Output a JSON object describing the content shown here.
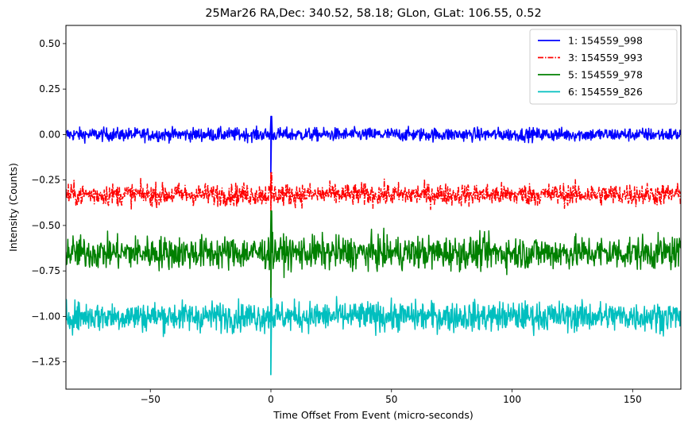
{
  "chart_data": {
    "type": "line",
    "title": "25Mar26 RA,Dec:  340.52,  58.18; GLon, GLat:  106.55,   0.52",
    "xlabel": "Time Offset From Event (micro-seconds)",
    "ylabel": "Intensity (Counts)",
    "xlim": [
      -85,
      170
    ],
    "ylim": [
      -1.4,
      0.6
    ],
    "xticks": [
      -50,
      0,
      50,
      100,
      150
    ],
    "xtick_labels": [
      "−50",
      "0",
      "50",
      "100",
      "150"
    ],
    "yticks": [
      0.5,
      0.25,
      0.0,
      -0.25,
      -0.5,
      -0.75,
      -1.0,
      -1.25
    ],
    "ytick_labels": [
      "0.50",
      "0.25",
      "0.00",
      "−0.25",
      "−0.50",
      "−0.75",
      "−1.00",
      "−1.25"
    ],
    "grid": false,
    "legend_position": "top-right",
    "series": [
      {
        "name": "1: 154559_998",
        "color": "#0000ff",
        "dash": "solid",
        "baseline": 0.0,
        "noise": 0.018,
        "spike_max": 0.1,
        "spike_min": -0.21,
        "spike_x": 0.0
      },
      {
        "name": "3: 154559_993",
        "color": "#ff0000",
        "dash": "dashdot",
        "baseline": -0.33,
        "noise": 0.03,
        "spike_max": -0.21,
        "spike_min": -0.42,
        "spike_x": 0.0
      },
      {
        "name": "5: 154559_978",
        "color": "#008000",
        "dash": "solid",
        "baseline": -0.65,
        "noise": 0.045,
        "spike_max": -0.42,
        "spike_min": -0.93,
        "spike_x": 0.0
      },
      {
        "name": "6: 154559_826",
        "color": "#00bfbf",
        "dash": "solid",
        "baseline": -1.0,
        "noise": 0.04,
        "spike_max": -0.9,
        "spike_min": -1.32,
        "spike_x": 0.0
      }
    ]
  }
}
